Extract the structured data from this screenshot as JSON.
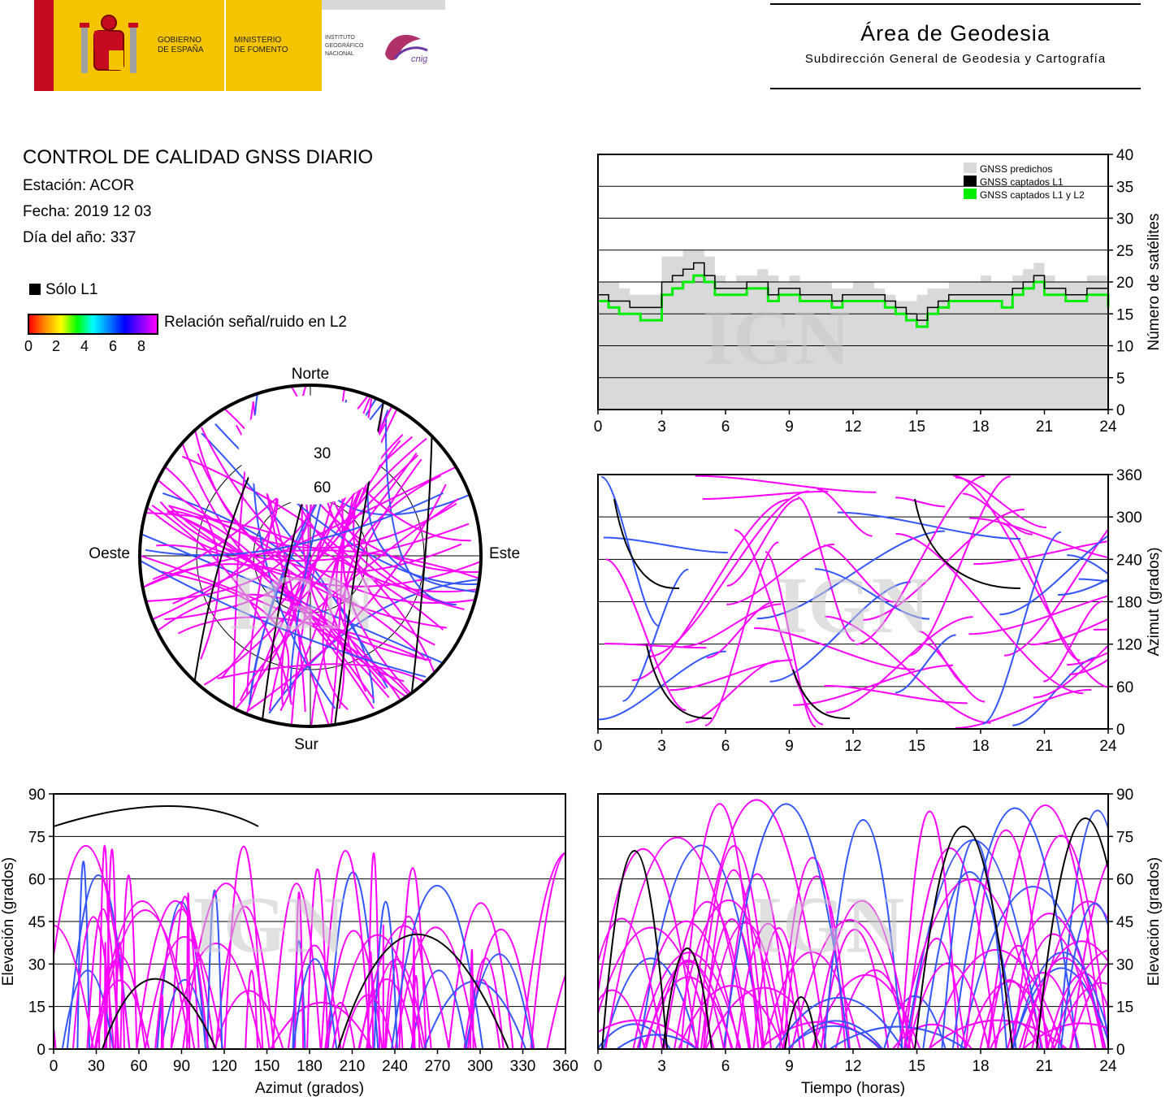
{
  "header": {
    "logos": {
      "gov_line1": "GOBIERNO",
      "gov_line2": "DE ESPAÑA",
      "min_line1": "MINISTERIO",
      "min_line2": "DE FOMENTO",
      "ign_line1": "INSTITUTO",
      "ign_line2": "GEOGRÁFICO",
      "ign_line3": "NACIONAL",
      "cnig": "cnig"
    },
    "area_title": "Área de Geodesia",
    "area_subtitle": "Subdirección General de Geodesia y Cartografía"
  },
  "info": {
    "title": "CONTROL DE CALIDAD GNSS DIARIO",
    "station": "Estación: ACOR",
    "date": "Fecha: 2019 12 03",
    "doy": "Día del año: 337"
  },
  "legend": {
    "only_l1": "Sólo L1",
    "colorbar_label": "Relación señal/ruido en L2",
    "colorbar_ticks": [
      "0",
      "2",
      "4",
      "6",
      "8"
    ]
  },
  "watermark": "IGN",
  "colors": {
    "predicted": "#d9d9d9",
    "l1": "#000000",
    "l1l2": "#00ee00",
    "track_main": "#ff00ff",
    "track_low": "#3355ff"
  },
  "chart_data": [
    {
      "id": "satellites_count",
      "type": "area",
      "xlabel": "",
      "ylabel": "Número de satélites",
      "xlim": [
        0,
        24
      ],
      "ylim": [
        0,
        40
      ],
      "xticks": [
        "0",
        "3",
        "6",
        "9",
        "12",
        "15",
        "18",
        "21",
        "24"
      ],
      "yticks": [
        "0",
        "5",
        "10",
        "15",
        "20",
        "25",
        "30",
        "35",
        "40"
      ],
      "grid": true,
      "legend_position": "top-right",
      "series": [
        {
          "name": "GNSS predichos",
          "x": [
            0,
            0.5,
            1,
            1.5,
            2,
            2.5,
            3,
            3.5,
            4,
            4.5,
            5,
            5.5,
            6,
            6.5,
            7,
            7.5,
            8,
            8.5,
            9,
            9.5,
            10,
            10.5,
            11,
            11.5,
            12,
            12.5,
            13,
            13.5,
            14,
            14.5,
            15,
            15.5,
            16,
            16.5,
            17,
            17.5,
            18,
            18.5,
            19,
            19.5,
            20,
            20.5,
            21,
            21.5,
            22,
            22.5,
            23,
            23.5,
            24
          ],
          "y": [
            20,
            20,
            19,
            18,
            18,
            18,
            24,
            24,
            25,
            25,
            24,
            21,
            20,
            21,
            21,
            22,
            21,
            20,
            21,
            20,
            20,
            20,
            19,
            19,
            20,
            20,
            19,
            18,
            17,
            17,
            18,
            19,
            19,
            20,
            20,
            20,
            21,
            20,
            20,
            21,
            22,
            23,
            21,
            20,
            20,
            20,
            21,
            21,
            20
          ]
        },
        {
          "name": "GNSS captados L1",
          "x": [
            0,
            0.5,
            1,
            1.5,
            2,
            2.5,
            3,
            3.5,
            4,
            4.5,
            5,
            5.5,
            6,
            6.5,
            7,
            7.5,
            8,
            8.5,
            9,
            9.5,
            10,
            10.5,
            11,
            11.5,
            12,
            12.5,
            13,
            13.5,
            14,
            14.5,
            15,
            15.5,
            16,
            16.5,
            17,
            17.5,
            18,
            18.5,
            19,
            19.5,
            20,
            20.5,
            21,
            21.5,
            22,
            22.5,
            23,
            23.5,
            24
          ],
          "y": [
            18,
            17,
            17,
            16,
            16,
            16,
            20,
            21,
            22,
            23,
            21,
            19,
            19,
            19,
            20,
            20,
            18,
            19,
            19,
            18,
            18,
            18,
            17,
            18,
            18,
            18,
            18,
            17,
            16,
            15,
            14,
            16,
            17,
            18,
            18,
            18,
            18,
            18,
            18,
            19,
            20,
            21,
            19,
            19,
            18,
            18,
            19,
            19,
            18
          ]
        },
        {
          "name": "GNSS captados L1 y L2",
          "x": [
            0,
            0.5,
            1,
            1.5,
            2,
            2.5,
            3,
            3.5,
            4,
            4.5,
            5,
            5.5,
            6,
            6.5,
            7,
            7.5,
            8,
            8.5,
            9,
            9.5,
            10,
            10.5,
            11,
            11.5,
            12,
            12.5,
            13,
            13.5,
            14,
            14.5,
            15,
            15.5,
            16,
            16.5,
            17,
            17.5,
            18,
            18.5,
            19,
            19.5,
            20,
            20.5,
            21,
            21.5,
            22,
            22.5,
            23,
            23.5,
            24
          ],
          "y": [
            17,
            16,
            15,
            15,
            14,
            14,
            18,
            19,
            20,
            21,
            20,
            18,
            18,
            18,
            19,
            19,
            17,
            18,
            18,
            17,
            17,
            17,
            16,
            17,
            17,
            17,
            17,
            16,
            15,
            14,
            13,
            15,
            16,
            17,
            17,
            17,
            17,
            17,
            16,
            18,
            19,
            20,
            18,
            18,
            17,
            17,
            18,
            18,
            16
          ]
        }
      ]
    },
    {
      "id": "skyplot",
      "type": "scatter",
      "projection": "polar",
      "direction_labels": {
        "north": "Norte",
        "south": "Sur",
        "east": "Este",
        "west": "Oeste"
      },
      "elevation_ring_labels": [
        "30",
        "60"
      ],
      "note_visible": "",
      "colorbar_range": [
        0,
        8
      ]
    },
    {
      "id": "azimuth_vs_time",
      "type": "scatter",
      "xlabel": "",
      "ylabel": "Azimut (grados)",
      "xlim": [
        0,
        24
      ],
      "ylim": [
        0,
        360
      ],
      "xticks": [
        "0",
        "3",
        "6",
        "9",
        "12",
        "15",
        "18",
        "21",
        "24"
      ],
      "yticks": [
        "0",
        "60",
        "120",
        "180",
        "240",
        "300",
        "360"
      ],
      "grid": true
    },
    {
      "id": "elevation_vs_azimuth",
      "type": "scatter",
      "xlabel": "Azimut (grados)",
      "ylabel": "Elevación (grados)",
      "xlim": [
        0,
        360
      ],
      "ylim": [
        0,
        90
      ],
      "xticks": [
        "0",
        "30",
        "60",
        "90",
        "120",
        "150",
        "180",
        "210",
        "240",
        "270",
        "300",
        "330",
        "360"
      ],
      "yticks": [
        "0",
        "15",
        "30",
        "45",
        "60",
        "75",
        "90"
      ],
      "grid": true
    },
    {
      "id": "elevation_vs_time",
      "type": "scatter",
      "xlabel": "Tiempo (horas)",
      "ylabel": "Elevación (grados)",
      "xlim": [
        0,
        24
      ],
      "ylim": [
        0,
        90
      ],
      "xticks": [
        "0",
        "3",
        "6",
        "9",
        "12",
        "15",
        "18",
        "21",
        "24"
      ],
      "yticks": [
        "0",
        "15",
        "30",
        "45",
        "60",
        "75",
        "90"
      ],
      "grid": true
    }
  ]
}
